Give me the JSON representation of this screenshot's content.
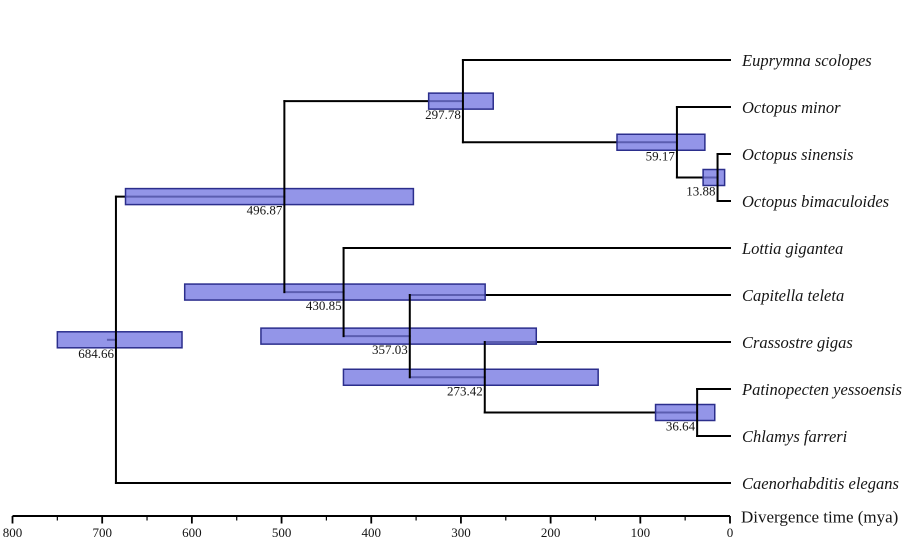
{
  "axis": {
    "label": "Divergence time (mya)",
    "major_ticks": [
      800,
      700,
      600,
      500,
      400,
      300,
      200,
      100,
      0
    ],
    "minor_tick_step": 50,
    "range_mya": [
      800,
      0
    ]
  },
  "style": {
    "background": "#ffffff",
    "branch_color": "#000000",
    "bar_fill": "#7477e1",
    "bar_fill_opacity": 0.78,
    "bar_border": "#2b2e8c",
    "text_color": "#151515"
  },
  "chart_data": {
    "type": "phylogenetic_chronogram",
    "title": "",
    "xlabel": "Divergence time (mya)",
    "time_axis": {
      "max_mya": 800,
      "min_mya": 0,
      "major_tick_step": 100,
      "minor_tick_step": 50
    },
    "tips_top_to_bottom": [
      "Euprymna scolopes",
      "Octopus minor",
      "Octopus sinensis",
      "Octopus bimaculoides",
      "Lottia gigantea",
      "Capitella teleta",
      "Crassostre gigas",
      "Patinopecten yessoensis",
      "Chlamys farreri",
      "Caenorhabditis elegans"
    ],
    "node_ages_mya": [
      684.66,
      496.87,
      430.85,
      357.03,
      297.78,
      273.42,
      59.17,
      36.64,
      13.88
    ],
    "tree": {
      "label": "684.66",
      "age": 684.66,
      "ci": [
        611,
        750
      ],
      "children": [
        {
          "label": "496.87",
          "age": 496.87,
          "ci": [
            353,
            674
          ],
          "children": [
            {
              "label": "297.78",
              "age": 297.78,
              "ci": [
                264,
                336
              ],
              "children": [
                {
                  "name": "Euprymna scolopes"
                },
                {
                  "label": "59.17",
                  "age": 59.17,
                  "ci": [
                    28,
                    126
                  ],
                  "children": [
                    {
                      "name": "Octopus minor"
                    },
                    {
                      "label": "13.88",
                      "age": 13.88,
                      "ci": [
                        6,
                        30
                      ],
                      "children": [
                        {
                          "name": "Octopus sinensis"
                        },
                        {
                          "name": "Octopus bimaculoides"
                        }
                      ]
                    }
                  ]
                }
              ]
            },
            {
              "label": "430.85",
              "age": 430.85,
              "ci": [
                273,
                608
              ],
              "children": [
                {
                  "name": "Lottia gigantea"
                },
                {
                  "label": "357.03",
                  "age": 357.03,
                  "ci": [
                    216,
                    523
                  ],
                  "children": [
                    {
                      "name": "Capitella teleta"
                    },
                    {
                      "label": "273.42",
                      "age": 273.42,
                      "ci": [
                        147,
                        431
                      ],
                      "children": [
                        {
                          "name": "Crassostre gigas"
                        },
                        {
                          "label": "36.64",
                          "age": 36.64,
                          "ci": [
                            17,
                            83
                          ],
                          "children": [
                            {
                              "name": "Patinopecten yessoensis"
                            },
                            {
                              "name": "Chlamys farreri"
                            }
                          ]
                        }
                      ]
                    }
                  ]
                }
              ]
            }
          ]
        },
        {
          "name": "Caenorhabditis elegans"
        }
      ]
    }
  }
}
